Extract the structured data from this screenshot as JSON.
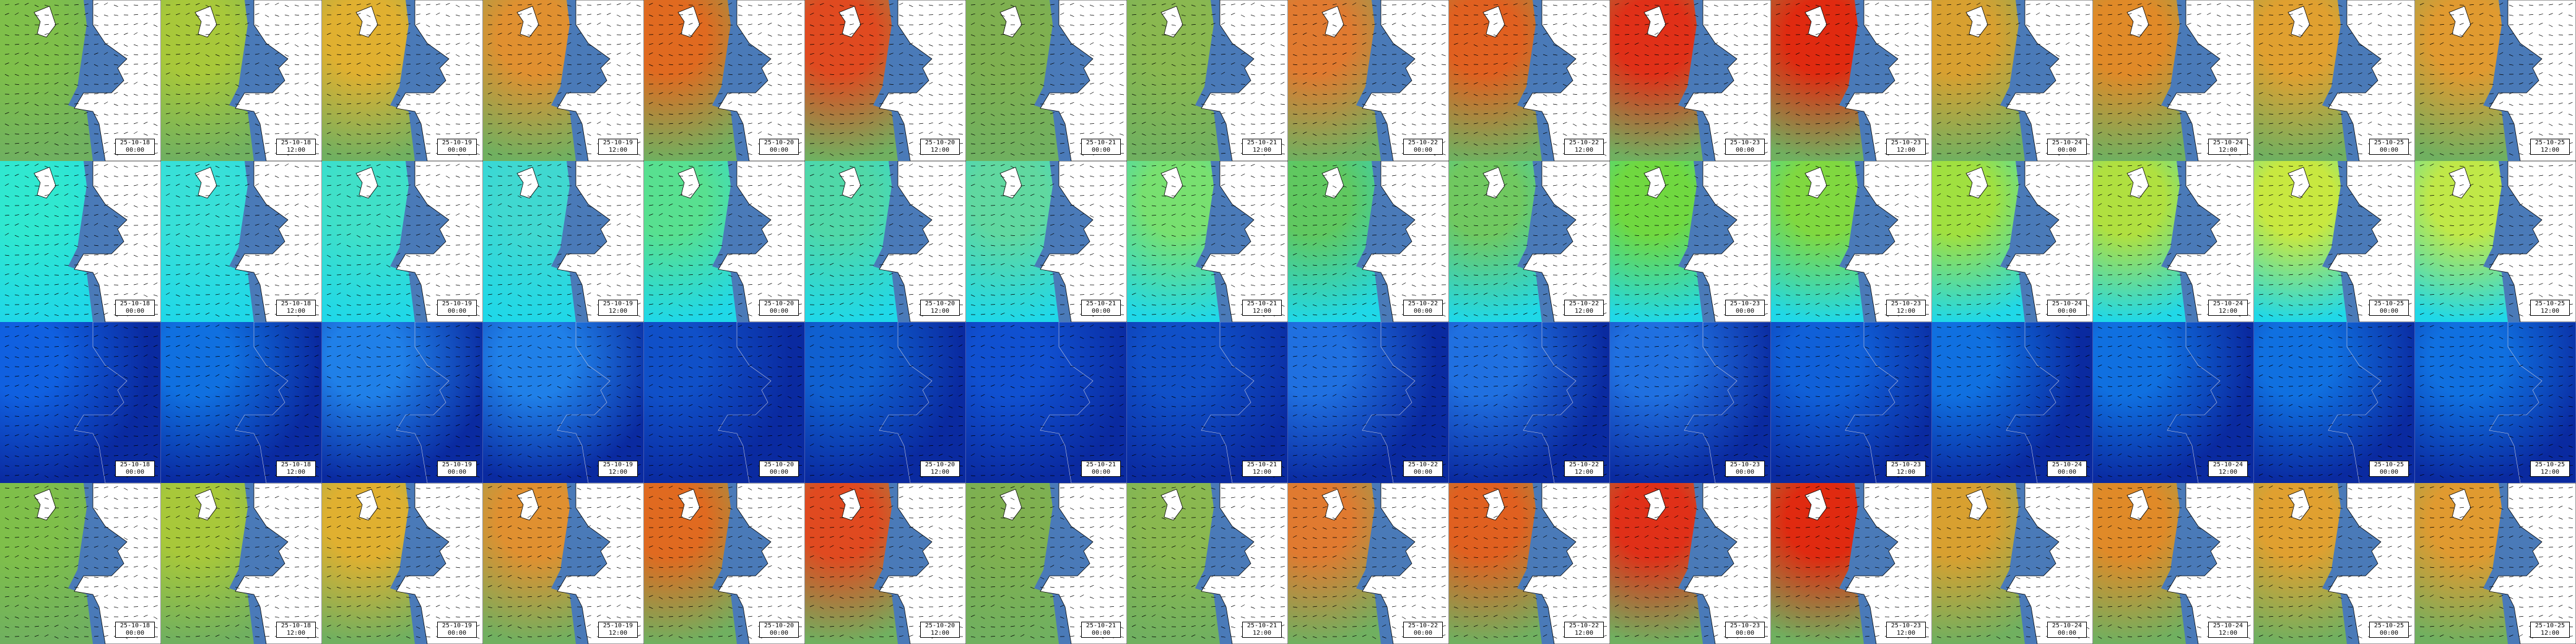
{
  "rows": [
    {
      "tiles": [
        [
          "25-10-18",
          "00:00"
        ],
        [
          "25-10-18",
          "12:00"
        ],
        [
          "25-10-19",
          "00:00"
        ],
        [
          "25-10-19",
          "12:00"
        ],
        [
          "25-10-20",
          "00:00"
        ],
        [
          "25-10-20",
          "12:00"
        ],
        [
          "25-10-21",
          "00:00"
        ],
        [
          "25-10-21",
          "12:00"
        ],
        [
          "25-10-22",
          "00:00"
        ],
        [
          "25-10-22",
          "12:00"
        ],
        [
          "25-10-23",
          "00:00"
        ],
        [
          "25-10-23",
          "12:00"
        ],
        [
          "25-10-24",
          "00:00"
        ],
        [
          "25-10-24",
          "12:00"
        ],
        [
          "25-10-25",
          "00:00"
        ],
        [
          "25-10-25",
          "12:00"
        ]
      ]
    },
    {
      "tiles": [
        [
          "25-10-18",
          "00:00"
        ],
        [
          "25-10-18",
          "12:00"
        ],
        [
          "25-10-19",
          "00:00"
        ],
        [
          "25-10-19",
          "12:00"
        ],
        [
          "25-10-20",
          "00:00"
        ],
        [
          "25-10-20",
          "12:00"
        ],
        [
          "25-10-21",
          "00:00"
        ],
        [
          "25-10-21",
          "12:00"
        ],
        [
          "25-10-22",
          "00:00"
        ],
        [
          "25-10-22",
          "12:00"
        ],
        [
          "25-10-23",
          "00:00"
        ],
        [
          "25-10-23",
          "12:00"
        ],
        [
          "25-10-24",
          "00:00"
        ],
        [
          "25-10-24",
          "12:00"
        ],
        [
          "25-10-25",
          "00:00"
        ],
        [
          "25-10-25",
          "12:00"
        ]
      ]
    },
    {
      "tiles": [
        [
          "25-10-18",
          "00:00"
        ],
        [
          "25-10-18",
          "12:00"
        ],
        [
          "25-10-19",
          "00:00"
        ],
        [
          "25-10-19",
          "12:00"
        ],
        [
          "25-10-20",
          "00:00"
        ],
        [
          "25-10-20",
          "12:00"
        ],
        [
          "25-10-21",
          "00:00"
        ],
        [
          "25-10-21",
          "12:00"
        ],
        [
          "25-10-22",
          "00:00"
        ],
        [
          "25-10-22",
          "12:00"
        ],
        [
          "25-10-23",
          "00:00"
        ],
        [
          "25-10-23",
          "12:00"
        ],
        [
          "25-10-24",
          "00:00"
        ],
        [
          "25-10-24",
          "12:00"
        ],
        [
          "25-10-25",
          "00:00"
        ],
        [
          "25-10-25",
          "12:00"
        ]
      ]
    },
    {
      "tiles": [
        [
          "25-10-18",
          "00:00"
        ],
        [
          "25-10-18",
          "12:00"
        ],
        [
          "25-10-19",
          "00:00"
        ],
        [
          "25-10-19",
          "12:00"
        ],
        [
          "25-10-20",
          "00:00"
        ],
        [
          "25-10-20",
          "12:00"
        ],
        [
          "25-10-21",
          "00:00"
        ],
        [
          "25-10-21",
          "12:00"
        ],
        [
          "25-10-22",
          "00:00"
        ],
        [
          "25-10-22",
          "12:00"
        ],
        [
          "25-10-23",
          "00:00"
        ],
        [
          "25-10-23",
          "12:00"
        ],
        [
          "25-10-24",
          "00:00"
        ],
        [
          "25-10-24",
          "12:00"
        ],
        [
          "25-10-25",
          "00:00"
        ],
        [
          "25-10-25",
          "12:00"
        ]
      ]
    }
  ]
}
